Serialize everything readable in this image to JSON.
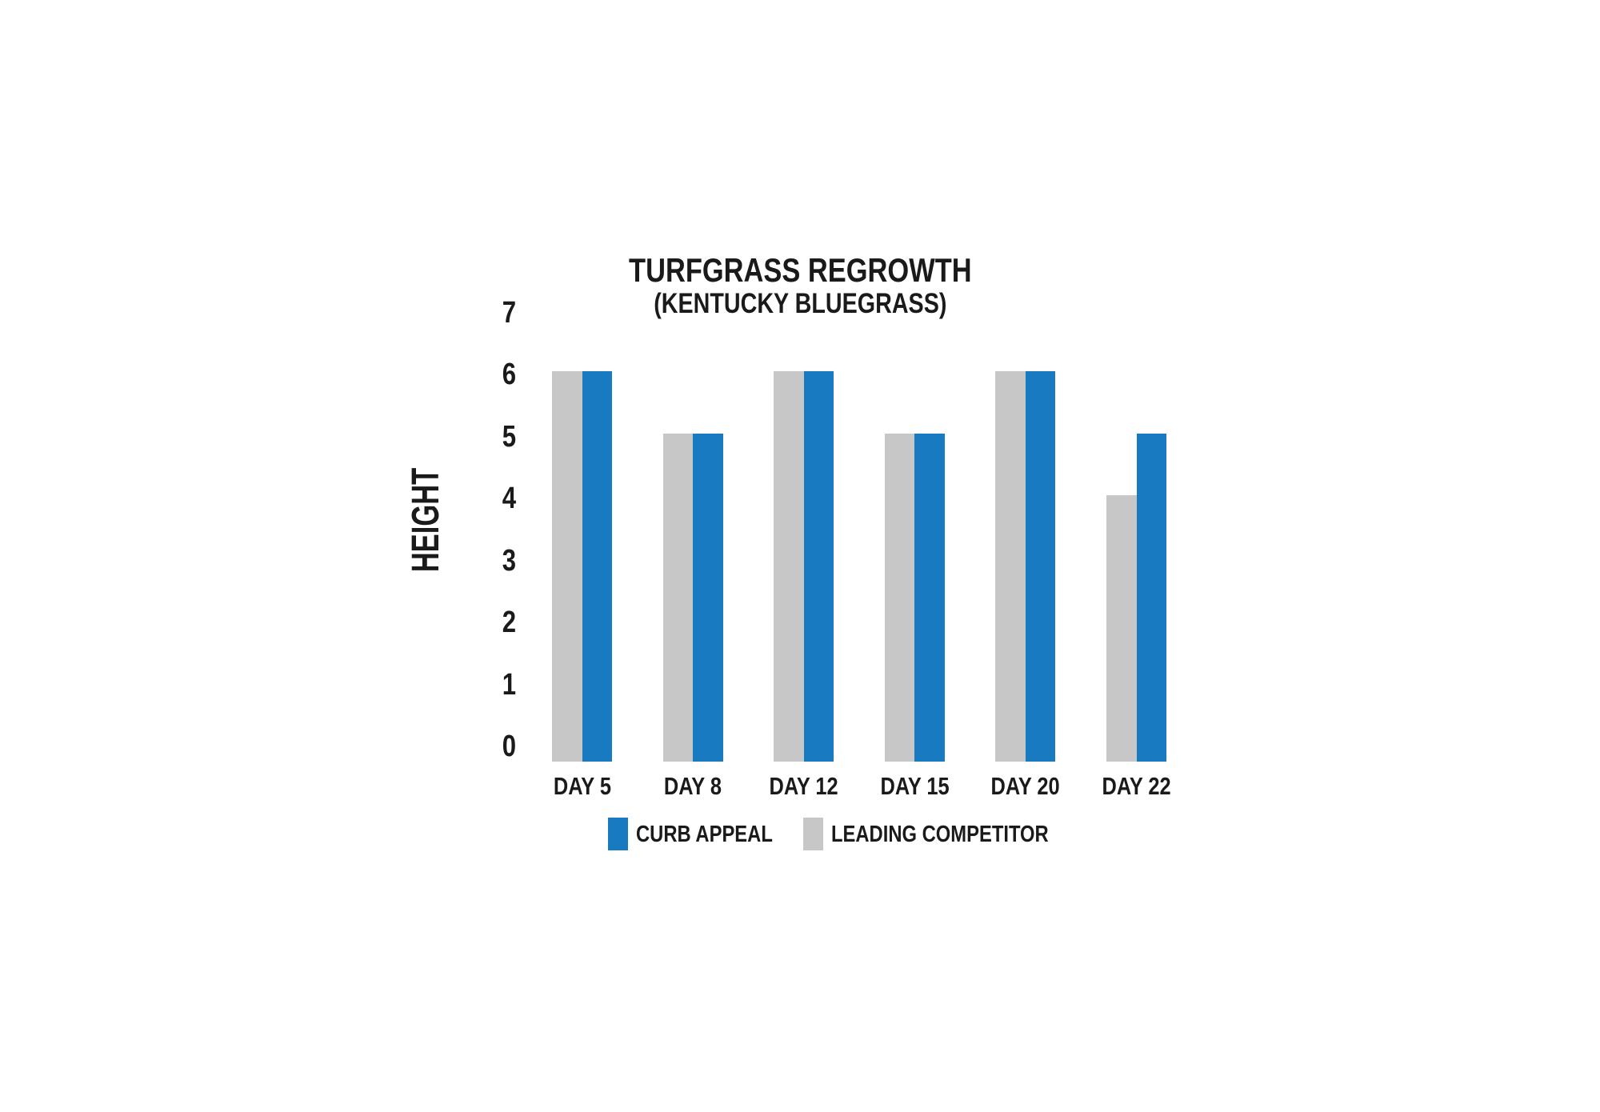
{
  "page": {
    "background_color": "#ffffff",
    "text_color": "#1a1a1a"
  },
  "chart_data": {
    "type": "bar",
    "title": "TURFGRASS REGROWTH",
    "subtitle": "(KENTUCKY BLUEGRASS)",
    "xlabel": "",
    "ylabel": "HEIGHT",
    "ylim": [
      0,
      7
    ],
    "y_ticks": [
      7,
      6,
      5,
      4,
      3,
      2,
      1,
      0
    ],
    "categories": [
      "DAY 5",
      "DAY 8",
      "DAY 12",
      "DAY 15",
      "DAY 20",
      "DAY 22"
    ],
    "series": [
      {
        "name": "LEADING COMPETITOR",
        "color": "#c7c7c8",
        "values": [
          6,
          5,
          6,
          5,
          6,
          4
        ]
      },
      {
        "name": "CURB APPEAL",
        "color": "#187bc1",
        "values": [
          6,
          5,
          6,
          5,
          6,
          5
        ]
      }
    ],
    "legend": [
      {
        "label": "CURB APPEAL",
        "color": "#187bc1"
      },
      {
        "label": "LEADING COMPETITOR",
        "color": "#c7c7c8"
      }
    ],
    "grid": false,
    "axis_lines": false,
    "legend_position": "bottom"
  }
}
